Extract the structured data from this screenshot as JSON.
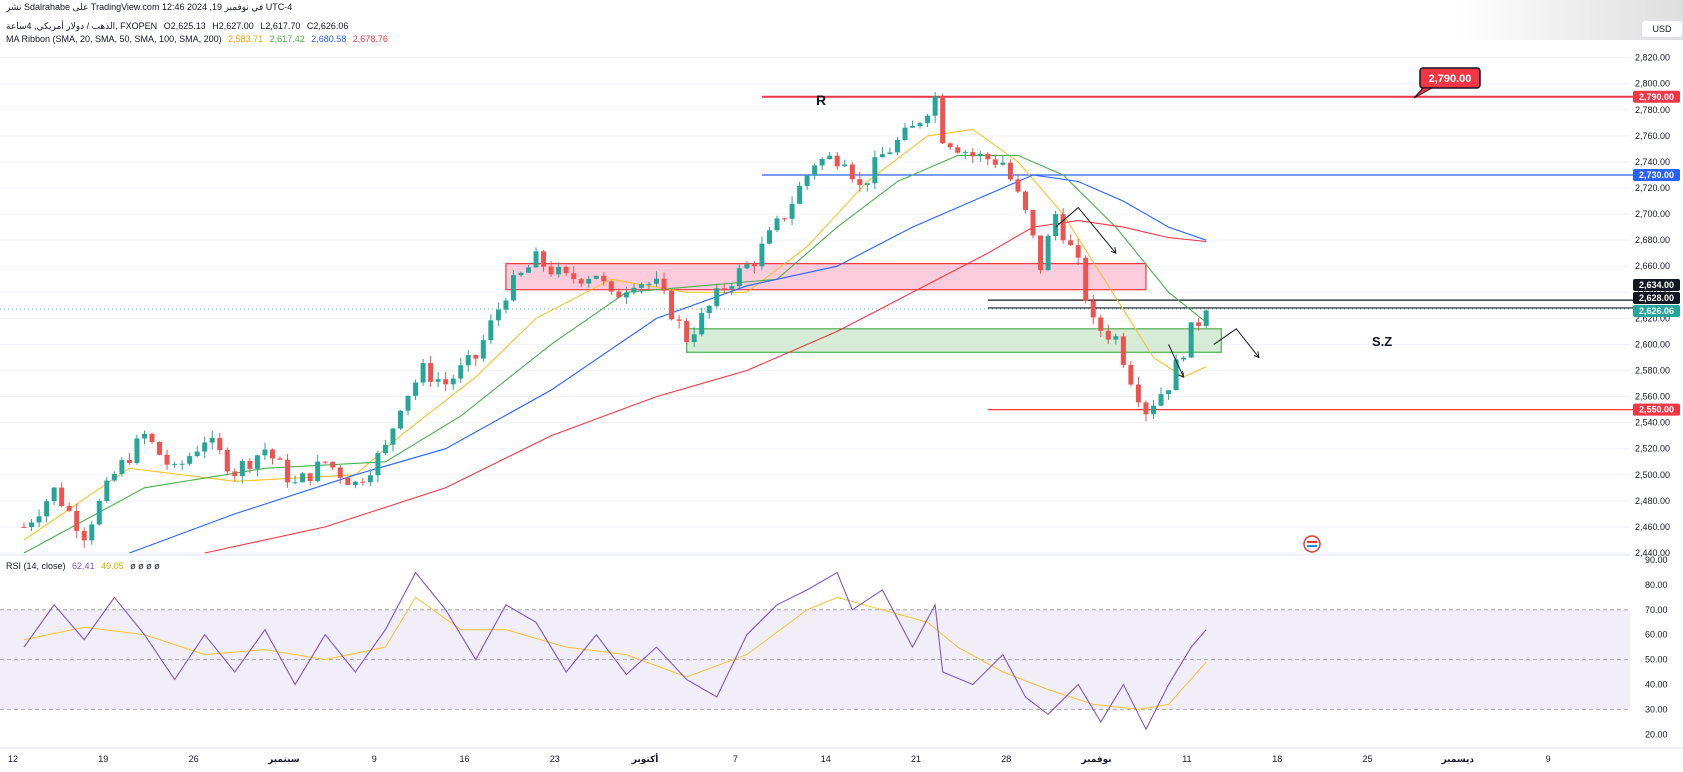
{
  "header": {
    "published": "نشر Sdalrahabe على TradingView.com في نوفمبر 19, 2024 12:46 UTC-4",
    "symbol": "الذهب / دولار أمريكي, 4ساعة, FXOPEN",
    "ohlc": {
      "o": "O2,625.13",
      "h": "H2,627.00",
      "l": "L2,617.70",
      "c": "C2,626.06"
    },
    "ribbon_name": "MA Ribbon (SMA, 20, SMA, 50, SMA, 100, SMA, 200)",
    "ribbon_values": [
      "2,583.71",
      "2,617.42",
      "2,680.58",
      "2,678.76"
    ],
    "rsi_name": "RSI (14, close)",
    "rsi_values": [
      "62.41",
      "49.05",
      "ø ø ø ø"
    ],
    "currency": "USD"
  },
  "colors": {
    "up": "#26a69a",
    "down": "#ef5350",
    "ma20": "#f7c42b",
    "ma50": "#4caf50",
    "ma100": "#2962ff",
    "ma200": "#f23645",
    "rsi": "#7e57c2",
    "rsi_ma": "#f7c42b",
    "rsi_band": "#ede7f6",
    "resistance_zone": "#f8bbd0",
    "support_zone": "#c8e6c9"
  },
  "annotations": {
    "r_label": "R",
    "sz_label": "S.Z",
    "callout": "2,790.00"
  },
  "chart_data": {
    "type": "candlestick",
    "instrument": "XAUUSD 4H",
    "x_ticks": [
      "12",
      "19",
      "26",
      "سبتمبر",
      "9",
      "16",
      "23",
      "أكتوبر",
      "7",
      "14",
      "21",
      "28",
      "نوفمبر",
      "11",
      "18",
      "25",
      "ديسمبر",
      "9"
    ],
    "y_ticks": [
      2440,
      2460,
      2480,
      2500,
      2520,
      2540,
      2560,
      2580,
      2600,
      2620,
      2640,
      2660,
      2680,
      2700,
      2720,
      2740,
      2760,
      2780,
      2800,
      2820
    ],
    "y_tick_labels": [
      "2,440.00",
      "2,460.00",
      "2,480.00",
      "2,500.00",
      "2,520.00",
      "2,540.00",
      "2,560.00",
      "2,580.00",
      "2,600.00",
      "2,620.00",
      "2,640.00",
      "2,660.00",
      "2,680.00",
      "2,700.00",
      "2,720.00",
      "2,740.00",
      "2,760.00",
      "2,780.00",
      "2,800.00",
      "2,820.00"
    ],
    "ylim": [
      2440,
      2825
    ],
    "price_path": [
      [
        0,
        2460
      ],
      [
        4,
        2488
      ],
      [
        8,
        2455
      ],
      [
        12,
        2500
      ],
      [
        16,
        2530
      ],
      [
        20,
        2502
      ],
      [
        24,
        2528
      ],
      [
        28,
        2503
      ],
      [
        32,
        2520
      ],
      [
        36,
        2492
      ],
      [
        40,
        2510
      ],
      [
        44,
        2493
      ],
      [
        48,
        2520
      ],
      [
        50,
        2555
      ],
      [
        53,
        2580
      ],
      [
        56,
        2570
      ],
      [
        60,
        2590
      ],
      [
        64,
        2640
      ],
      [
        68,
        2665
      ],
      [
        72,
        2650
      ],
      [
        76,
        2655
      ],
      [
        78,
        2635
      ],
      [
        81,
        2650
      ],
      [
        84,
        2645
      ],
      [
        88,
        2605
      ],
      [
        90,
        2620
      ],
      [
        93,
        2645
      ],
      [
        97,
        2665
      ],
      [
        101,
        2700
      ],
      [
        105,
        2740
      ],
      [
        109,
        2745
      ],
      [
        111,
        2720
      ],
      [
        114,
        2745
      ],
      [
        118,
        2765
      ],
      [
        121,
        2790
      ],
      [
        122,
        2760
      ],
      [
        126,
        2745
      ],
      [
        130,
        2740
      ],
      [
        133,
        2700
      ],
      [
        135,
        2660
      ],
      [
        137,
        2700
      ],
      [
        140,
        2660
      ],
      [
        142,
        2615
      ],
      [
        145,
        2605
      ],
      [
        147,
        2575
      ],
      [
        149,
        2550
      ],
      [
        152,
        2570
      ],
      [
        155,
        2610
      ],
      [
        157,
        2626
      ]
    ],
    "total_bars": 157,
    "last_price": 2626.06,
    "price_tags": [
      {
        "value": 2790.0,
        "label": "2,790.00",
        "color": "#f23645"
      },
      {
        "value": 2730.0,
        "label": "2,730.00",
        "color": "#2962ff"
      },
      {
        "value": 2634.0,
        "label": "2,634.00",
        "color": "#131722"
      },
      {
        "value": 2628.0,
        "label": "2,628.00",
        "color": "#131722"
      },
      {
        "value": 2626.06,
        "label": "2,626.06",
        "color": "#26a69a"
      },
      {
        "value": 2550.0,
        "label": "2,550.00",
        "color": "#f23645"
      }
    ],
    "horizontal_lines": [
      {
        "name": "resistance-r",
        "value": 2790,
        "color": "#f23645",
        "from_bar": 98,
        "to_bar": 190
      },
      {
        "name": "level-2730",
        "value": 2730,
        "color": "#2962ff",
        "from_bar": 98,
        "to_bar": 190
      },
      {
        "name": "level-2628",
        "value": 2628,
        "color": "#131722",
        "from_bar": 128,
        "to_bar": 190
      },
      {
        "name": "level-2634",
        "value": 2634,
        "color": "#131722",
        "from_bar": 128,
        "to_bar": 190
      },
      {
        "name": "support-2550",
        "value": 2550,
        "color": "#f23645",
        "from_bar": 128,
        "to_bar": 190
      }
    ],
    "zones": [
      {
        "name": "resistance-zone",
        "from_bar": 64,
        "to_bar": 149,
        "low": 2642,
        "high": 2662
      },
      {
        "name": "support-zone",
        "from_bar": 88,
        "to_bar": 159,
        "low": 2594,
        "high": 2612
      }
    ],
    "ma_series": [
      {
        "name": "SMA 20",
        "key": "ma20",
        "path": [
          [
            0,
            2450
          ],
          [
            14,
            2505
          ],
          [
            28,
            2495
          ],
          [
            44,
            2500
          ],
          [
            50,
            2530
          ],
          [
            60,
            2575
          ],
          [
            68,
            2620
          ],
          [
            78,
            2650
          ],
          [
            88,
            2640
          ],
          [
            96,
            2640
          ],
          [
            104,
            2675
          ],
          [
            112,
            2725
          ],
          [
            120,
            2760
          ],
          [
            126,
            2765
          ],
          [
            132,
            2740
          ],
          [
            138,
            2700
          ],
          [
            144,
            2645
          ],
          [
            150,
            2590
          ],
          [
            154,
            2575
          ],
          [
            157,
            2583
          ]
        ]
      },
      {
        "name": "SMA 50",
        "key": "ma50",
        "path": [
          [
            0,
            2440
          ],
          [
            16,
            2490
          ],
          [
            32,
            2505
          ],
          [
            48,
            2510
          ],
          [
            58,
            2545
          ],
          [
            70,
            2600
          ],
          [
            80,
            2640
          ],
          [
            90,
            2645
          ],
          [
            100,
            2650
          ],
          [
            108,
            2690
          ],
          [
            116,
            2725
          ],
          [
            124,
            2745
          ],
          [
            132,
            2745
          ],
          [
            138,
            2730
          ],
          [
            145,
            2690
          ],
          [
            152,
            2640
          ],
          [
            157,
            2617
          ]
        ]
      },
      {
        "name": "SMA 100",
        "key": "ma100",
        "path": [
          [
            14,
            2440
          ],
          [
            28,
            2470
          ],
          [
            44,
            2500
          ],
          [
            56,
            2520
          ],
          [
            70,
            2565
          ],
          [
            84,
            2620
          ],
          [
            96,
            2645
          ],
          [
            108,
            2660
          ],
          [
            118,
            2690
          ],
          [
            128,
            2715
          ],
          [
            134,
            2730
          ],
          [
            140,
            2725
          ],
          [
            146,
            2710
          ],
          [
            152,
            2690
          ],
          [
            157,
            2680
          ]
        ]
      },
      {
        "name": "SMA 200",
        "key": "ma200",
        "path": [
          [
            24,
            2440
          ],
          [
            40,
            2460
          ],
          [
            56,
            2490
          ],
          [
            70,
            2530
          ],
          [
            84,
            2560
          ],
          [
            96,
            2580
          ],
          [
            108,
            2610
          ],
          [
            118,
            2640
          ],
          [
            128,
            2670
          ],
          [
            134,
            2690
          ],
          [
            140,
            2695
          ],
          [
            146,
            2690
          ],
          [
            152,
            2682
          ],
          [
            157,
            2679
          ]
        ]
      }
    ],
    "rsi": {
      "ylim": [
        15,
        90
      ],
      "ticks": [
        20,
        30,
        40,
        50,
        60,
        70,
        80,
        90
      ],
      "tick_labels": [
        "20.00",
        "30.00",
        "40.00",
        "50.00",
        "60.00",
        "70.00",
        "80.00",
        "90.00"
      ],
      "band": [
        30,
        70
      ],
      "mid": 50,
      "path": [
        [
          0,
          55
        ],
        [
          4,
          72
        ],
        [
          8,
          58
        ],
        [
          12,
          75
        ],
        [
          16,
          60
        ],
        [
          20,
          42
        ],
        [
          24,
          60
        ],
        [
          28,
          45
        ],
        [
          32,
          62
        ],
        [
          36,
          40
        ],
        [
          40,
          60
        ],
        [
          44,
          45
        ],
        [
          48,
          62
        ],
        [
          52,
          85
        ],
        [
          56,
          70
        ],
        [
          60,
          50
        ],
        [
          64,
          72
        ],
        [
          68,
          65
        ],
        [
          72,
          45
        ],
        [
          76,
          60
        ],
        [
          80,
          44
        ],
        [
          84,
          55
        ],
        [
          88,
          42
        ],
        [
          92,
          35
        ],
        [
          96,
          60
        ],
        [
          100,
          72
        ],
        [
          104,
          78
        ],
        [
          108,
          85
        ],
        [
          110,
          70
        ],
        [
          114,
          78
        ],
        [
          118,
          55
        ],
        [
          121,
          72
        ],
        [
          122,
          45
        ],
        [
          126,
          40
        ],
        [
          130,
          52
        ],
        [
          133,
          35
        ],
        [
          136,
          28
        ],
        [
          140,
          40
        ],
        [
          143,
          25
        ],
        [
          146,
          40
        ],
        [
          149,
          22
        ],
        [
          152,
          40
        ],
        [
          155,
          55
        ],
        [
          157,
          62
        ]
      ],
      "ma_path": [
        [
          0,
          58
        ],
        [
          8,
          63
        ],
        [
          16,
          60
        ],
        [
          24,
          52
        ],
        [
          32,
          54
        ],
        [
          40,
          50
        ],
        [
          48,
          55
        ],
        [
          52,
          75
        ],
        [
          58,
          62
        ],
        [
          64,
          62
        ],
        [
          72,
          55
        ],
        [
          80,
          52
        ],
        [
          88,
          43
        ],
        [
          96,
          52
        ],
        [
          104,
          70
        ],
        [
          108,
          75
        ],
        [
          114,
          70
        ],
        [
          120,
          65
        ],
        [
          124,
          55
        ],
        [
          130,
          45
        ],
        [
          136,
          38
        ],
        [
          142,
          32
        ],
        [
          148,
          30
        ],
        [
          152,
          32
        ],
        [
          157,
          49
        ]
      ]
    }
  }
}
